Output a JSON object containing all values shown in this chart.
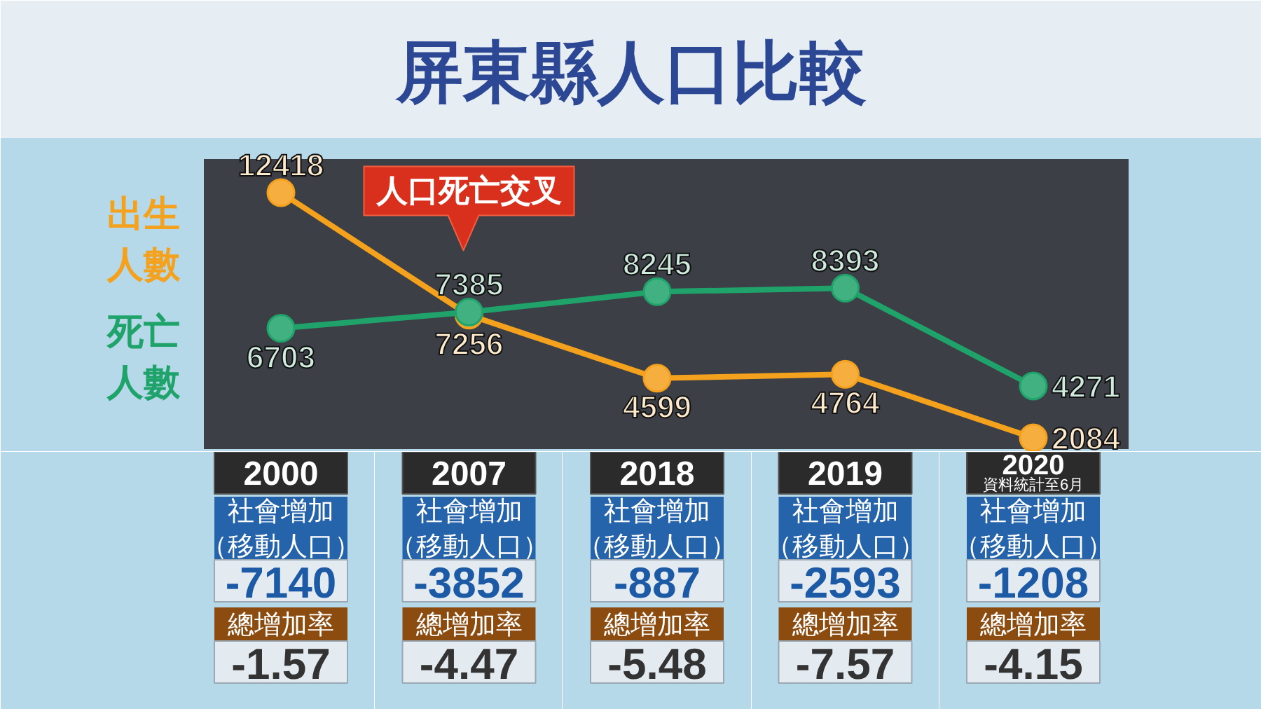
{
  "chart_data": [
    {
      "type": "line",
      "title": "屏東縣人口比較",
      "categories": [
        "2000",
        "2007",
        "2018",
        "2019",
        "2020"
      ],
      "series": [
        {
          "name": "出生人數",
          "color": "#f4a11d",
          "values": [
            12418,
            7256,
            4599,
            4764,
            2084
          ]
        },
        {
          "name": "死亡人數",
          "color": "#1fa36b",
          "values": [
            6703,
            7385,
            8245,
            8393,
            4271
          ]
        }
      ],
      "marker": "circle",
      "data_labels": true,
      "tick_labels": false,
      "annotations": [
        "人口死亡交叉"
      ]
    },
    {
      "type": "heatmap",
      "categories": [
        "2000"
      ],
      "y_categories": [
        "社會增加（移動人口）",
        "總增加率"
      ],
      "cells": [
        [
          -7140
        ],
        [
          -1.57
        ]
      ],
      "data_labels": true
    },
    {
      "type": "heatmap",
      "categories": [
        "2007"
      ],
      "y_categories": [
        "社會增加（移動人口）",
        "總增加率"
      ],
      "cells": [
        [
          -3852
        ],
        [
          -4.47
        ]
      ],
      "data_labels": true
    },
    {
      "type": "heatmap",
      "categories": [
        "2018"
      ],
      "y_categories": [
        "社會增加（移動人口）",
        "總增加率"
      ],
      "cells": [
        [
          -887
        ],
        [
          -5.48
        ]
      ],
      "data_labels": true
    },
    {
      "type": "heatmap",
      "categories": [
        "2019"
      ],
      "y_categories": [
        "社會增加（移動人口）",
        "總增加率"
      ],
      "cells": [
        [
          -2593
        ],
        [
          -7.57
        ]
      ],
      "data_labels": true
    },
    {
      "type": "heatmap",
      "categories": [
        "2020"
      ],
      "y_categories": [
        "社會增加（移動人口）",
        "總增加率"
      ],
      "cells": [
        [
          -1208
        ],
        [
          -4.15
        ]
      ],
      "data_labels": true,
      "annotations": [
        "資料統計至6月"
      ]
    }
  ]
}
